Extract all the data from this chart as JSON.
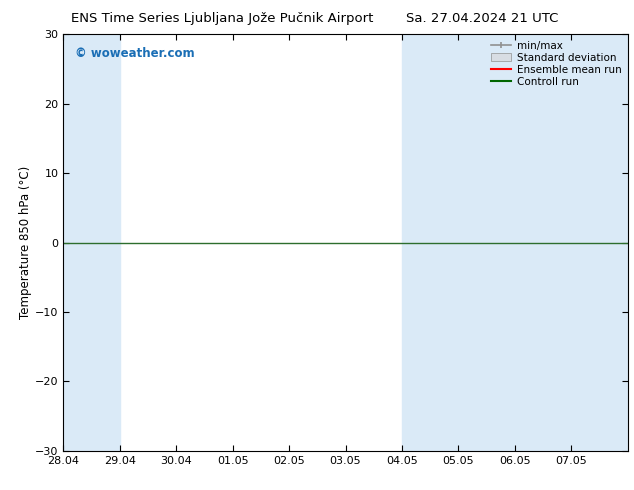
{
  "title_left": "ENS Time Series Ljubljana Jože Pučnik Airport",
  "title_right": "Sa. 27.04.2024 21 UTC",
  "ylabel": "Temperature 850 hPa (°C)",
  "ylim": [
    -30,
    30
  ],
  "yticks": [
    -30,
    -20,
    -10,
    0,
    10,
    20,
    30
  ],
  "xlim": [
    0,
    10
  ],
  "xtick_labels": [
    "28.04",
    "29.04",
    "30.04",
    "01.05",
    "02.05",
    "03.05",
    "04.05",
    "05.05",
    "06.05",
    "07.05"
  ],
  "xtick_positions": [
    0,
    1,
    2,
    3,
    4,
    5,
    6,
    7,
    8,
    9
  ],
  "blue_bands": [
    [
      0,
      1
    ],
    [
      6,
      7
    ],
    [
      7,
      8
    ],
    [
      8,
      9
    ],
    [
      9,
      10
    ]
  ],
  "blue_band_color": "#daeaf7",
  "bg_color": "#ffffff",
  "watermark": "© woweather.com",
  "watermark_color": "#1a6eb5",
  "zero_line_color": "#2d6e2d",
  "legend_items": [
    "min/max",
    "Standard deviation",
    "Ensemble mean run",
    "Controll run"
  ],
  "legend_colors": [
    "#909090",
    "#c0c8d0",
    "#ff0000",
    "#006600"
  ],
  "title_fontsize": 9.5,
  "axis_fontsize": 8.5,
  "tick_fontsize": 8
}
